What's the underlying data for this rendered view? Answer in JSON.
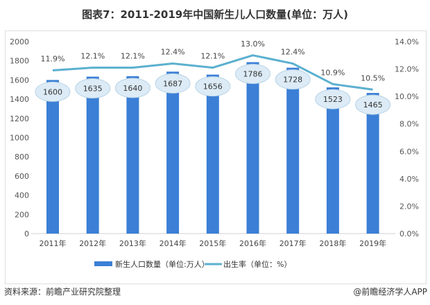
{
  "chart_data": {
    "type": "bar",
    "title": "图表7：2011-2019年中国新生儿人口数量(单位：万人)",
    "categories": [
      "2011年",
      "2012年",
      "2013年",
      "2014年",
      "2015年",
      "2016年",
      "2017年",
      "2018年",
      "2019年"
    ],
    "series": [
      {
        "name": "新生人口数量（单位:万人）",
        "type": "bar",
        "axis": "left",
        "color": "#3b7fd6",
        "values": [
          1600,
          1635,
          1640,
          1687,
          1656,
          1786,
          1728,
          1523,
          1465
        ]
      },
      {
        "name": "出生率（单位：%）",
        "type": "line",
        "axis": "right",
        "color": "#5bb0cf",
        "values": [
          11.9,
          12.1,
          12.1,
          12.4,
          12.1,
          13.0,
          12.4,
          10.9,
          10.5
        ]
      }
    ],
    "bar_labels": [
      "1600",
      "1635",
      "1640",
      "1687",
      "1656",
      "1786",
      "1728",
      "1523",
      "1465"
    ],
    "line_labels": [
      "11.9%",
      "12.1%",
      "12.1%",
      "12.4%",
      "12.1%",
      "13.0%",
      "12.4%",
      "10.9%",
      "10.5%"
    ],
    "ylim_left": [
      0,
      2000
    ],
    "yticks_left": [
      "0",
      "200",
      "400",
      "600",
      "800",
      "1000",
      "1200",
      "1400",
      "1600",
      "1800",
      "2000"
    ],
    "ylim_right": [
      0,
      14
    ],
    "yticks_right": [
      "0.0%",
      "2.0%",
      "4.0%",
      "6.0%",
      "8.0%",
      "10.0%",
      "12.0%",
      "14.0%"
    ],
    "grid": false,
    "legend": "bottom"
  },
  "footer": {
    "source": "资料来源：前瞻产业研究院整理",
    "credit": "@前瞻经济学人APP"
  }
}
